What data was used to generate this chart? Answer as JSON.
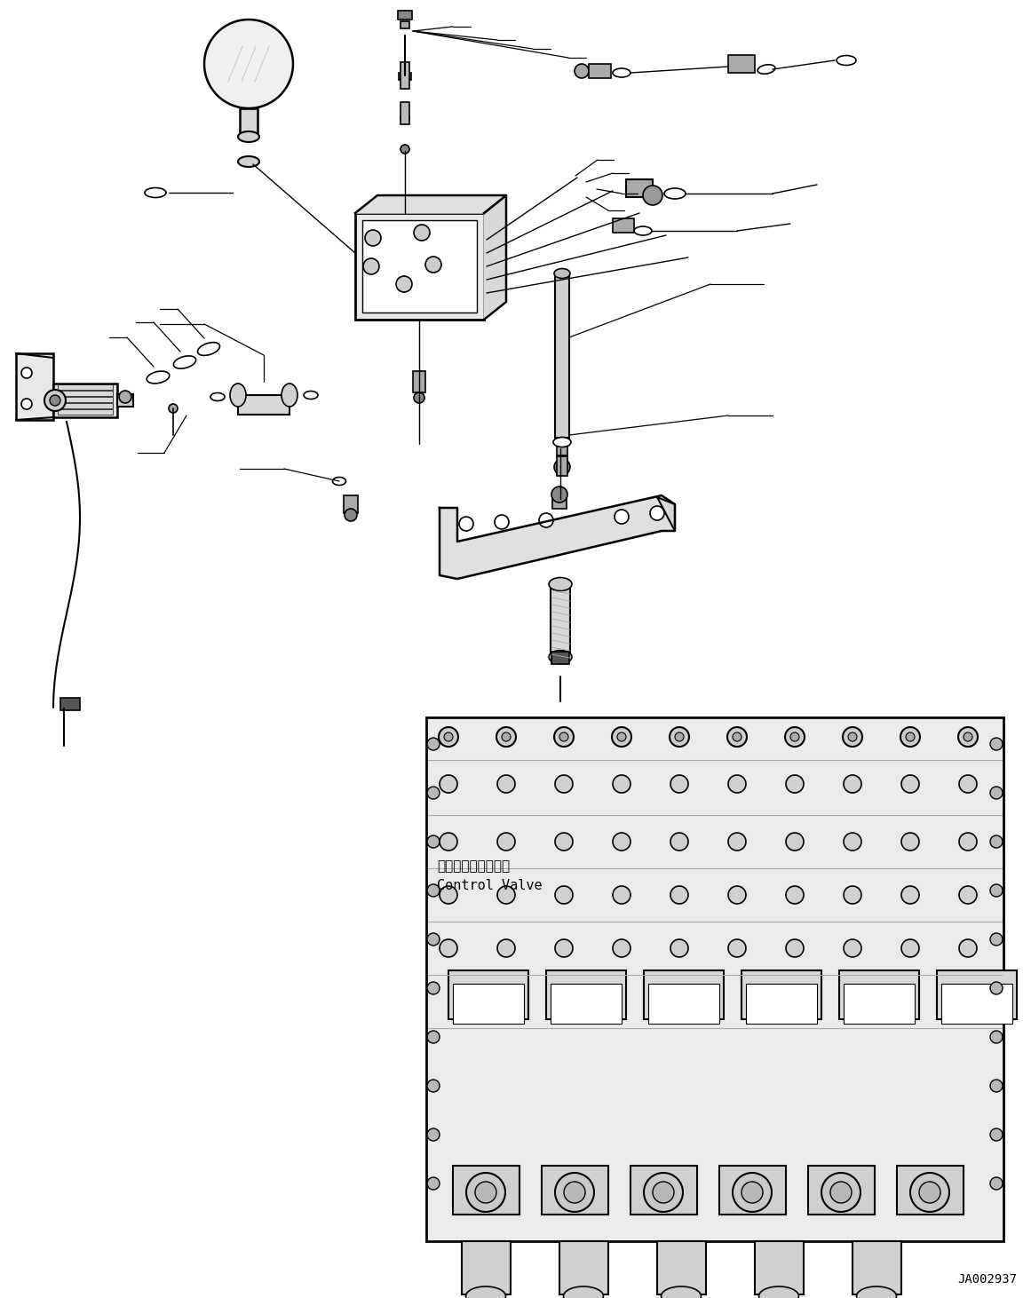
{
  "bg_color": "#ffffff",
  "line_color": "#000000",
  "text_color": "#000000",
  "fig_width": 11.61,
  "fig_height": 14.62,
  "label_code": "JA002937",
  "control_valve_label_jp": "コントロールバルブ",
  "control_valve_label_en": "Control Valve"
}
